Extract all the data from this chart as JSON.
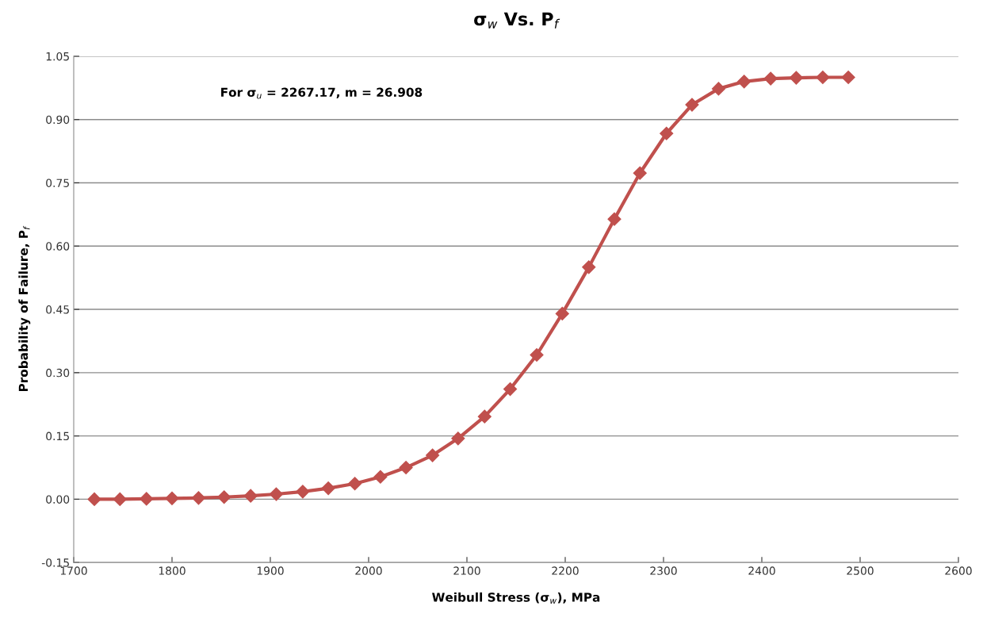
{
  "chart_data": {
    "type": "line",
    "title": "σ$_{w}$ Vs. P$_{f}$",
    "xlabel": "Weibull Stress (σ$_{w}$), MPa",
    "ylabel": "Probability of Failure, P$_{f}$",
    "annotations": [
      "For σ$_{u}$ = 2267.17, m = 26.908"
    ],
    "x": [
      1721,
      1747,
      1774,
      1800,
      1827,
      1853,
      1880,
      1906,
      1933,
      1959,
      1986,
      2012,
      2038,
      2065,
      2091,
      2118,
      2144,
      2171,
      2197,
      2224,
      2250,
      2276,
      2303,
      2329,
      2356,
      2382,
      2409,
      2435,
      2462,
      2488
    ],
    "series": [
      {
        "color": "#c0504d",
        "values": [
          0,
          0,
          0.001,
          0.002,
          0.003,
          0.005,
          0.008,
          0.012,
          0.018,
          0.026,
          0.037,
          0.053,
          0.075,
          0.104,
          0.144,
          0.196,
          0.261,
          0.342,
          0.44,
          0.55,
          0.664,
          0.773,
          0.867,
          0.935,
          0.973,
          0.99,
          0.997,
          0.999,
          1.0,
          1.0
        ]
      }
    ],
    "xlim": [
      1700,
      2600
    ],
    "xticks": [
      1700,
      1800,
      1900,
      2000,
      2100,
      2200,
      2300,
      2400,
      2500,
      2600
    ],
    "ylim": [
      -0.15,
      1.05
    ],
    "yticks": [
      {
        "value": -0.15,
        "label": "-0.15"
      },
      {
        "value": 0,
        "label": "0.00"
      },
      {
        "value": 0.15,
        "label": "0.15"
      },
      {
        "value": 0.3,
        "label": "0.30"
      },
      {
        "value": 0.45,
        "label": "0.45"
      },
      {
        "value": 0.6,
        "label": "0.60"
      },
      {
        "value": 0.75,
        "label": "0.75"
      },
      {
        "value": 0.9,
        "label": "0.90"
      },
      {
        "value": 1.05,
        "label": "1.05"
      }
    ],
    "grid": "y",
    "marker": "diamond",
    "line_style": "solid"
  }
}
